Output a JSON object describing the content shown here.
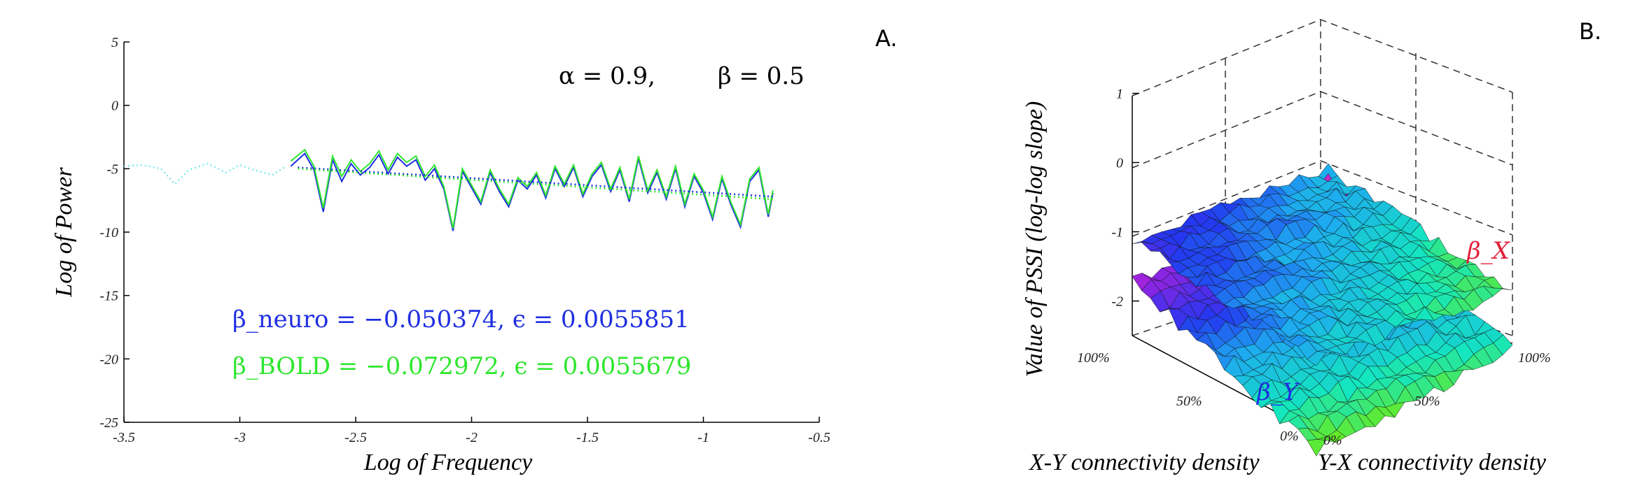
{
  "panels": {
    "a_label": "A.",
    "b_label": "B."
  },
  "chart_data": [
    {
      "type": "line",
      "panel": "A.",
      "xlabel": "Log of Frequency",
      "ylabel": "Log of Power",
      "xlim": [
        -3.5,
        -0.5
      ],
      "ylim": [
        -25,
        5
      ],
      "xticks": [
        "-3.5",
        "-3",
        "-2.5",
        "-2",
        "-1.5",
        "-1",
        "-0.5"
      ],
      "yticks": [
        "5",
        "0",
        "-5",
        "-10",
        "-15",
        "-20",
        "-25"
      ],
      "params_text": {
        "alpha": "α = 0.9,",
        "beta": "β = 0.5"
      },
      "series": [
        {
          "name": "β_neuro",
          "color": "#1f2fe0",
          "style": "solid",
          "x": [
            -2.78,
            -2.72,
            -2.68,
            -2.64,
            -2.6,
            -2.56,
            -2.52,
            -2.48,
            -2.44,
            -2.4,
            -2.36,
            -2.32,
            -2.28,
            -2.24,
            -2.2,
            -2.16,
            -2.12,
            -2.08,
            -2.04,
            -2.0,
            -1.96,
            -1.92,
            -1.88,
            -1.84,
            -1.8,
            -1.76,
            -1.72,
            -1.68,
            -1.64,
            -1.6,
            -1.56,
            -1.52,
            -1.48,
            -1.44,
            -1.4,
            -1.36,
            -1.32,
            -1.28,
            -1.24,
            -1.2,
            -1.16,
            -1.12,
            -1.08,
            -1.04,
            -1.0,
            -0.96,
            -0.92,
            -0.88,
            -0.84,
            -0.8,
            -0.76,
            -0.72,
            -0.7
          ],
          "y": [
            -4.8,
            -3.8,
            -5.1,
            -8.4,
            -4.3,
            -6.0,
            -4.6,
            -5.5,
            -4.9,
            -3.9,
            -5.4,
            -4.1,
            -4.8,
            -4.3,
            -5.9,
            -5.0,
            -6.6,
            -9.9,
            -5.2,
            -6.5,
            -7.8,
            -5.3,
            -6.8,
            -8.0,
            -5.9,
            -6.6,
            -5.5,
            -7.3,
            -5.0,
            -6.4,
            -4.9,
            -7.2,
            -5.6,
            -4.7,
            -6.8,
            -5.1,
            -7.6,
            -4.2,
            -6.9,
            -5.3,
            -7.4,
            -5.0,
            -8.0,
            -5.6,
            -6.9,
            -9.0,
            -5.8,
            -7.9,
            -9.6,
            -6.0,
            -5.1,
            -8.8,
            -6.9
          ]
        },
        {
          "name": "β_BOLD",
          "color": "#2ee62e",
          "style": "solid",
          "x": [
            -2.78,
            -2.72,
            -2.68,
            -2.64,
            -2.6,
            -2.56,
            -2.52,
            -2.48,
            -2.44,
            -2.4,
            -2.36,
            -2.32,
            -2.28,
            -2.24,
            -2.2,
            -2.16,
            -2.12,
            -2.08,
            -2.04,
            -2.0,
            -1.96,
            -1.92,
            -1.88,
            -1.84,
            -1.8,
            -1.76,
            -1.72,
            -1.68,
            -1.64,
            -1.6,
            -1.56,
            -1.52,
            -1.48,
            -1.44,
            -1.4,
            -1.36,
            -1.32,
            -1.28,
            -1.24,
            -1.2,
            -1.16,
            -1.12,
            -1.08,
            -1.04,
            -1.0,
            -0.96,
            -0.92,
            -0.88,
            -0.84,
            -0.8,
            -0.76,
            -0.72,
            -0.7
          ],
          "y": [
            -4.4,
            -3.5,
            -4.8,
            -8.1,
            -4.0,
            -5.6,
            -4.3,
            -5.2,
            -4.6,
            -3.6,
            -5.1,
            -3.8,
            -4.5,
            -4.0,
            -5.6,
            -4.7,
            -6.4,
            -9.7,
            -5.0,
            -6.3,
            -7.6,
            -5.1,
            -6.6,
            -7.8,
            -5.7,
            -6.4,
            -5.3,
            -7.1,
            -4.8,
            -6.2,
            -4.7,
            -7.0,
            -5.4,
            -4.5,
            -6.6,
            -4.9,
            -7.4,
            -4.0,
            -6.7,
            -5.1,
            -7.2,
            -4.8,
            -7.8,
            -5.4,
            -6.7,
            -8.8,
            -5.6,
            -7.7,
            -9.4,
            -5.8,
            -4.9,
            -8.6,
            -6.7
          ]
        },
        {
          "name": "",
          "color": "#80e8f0",
          "style": "dotted",
          "x": [
            -3.5,
            -3.42,
            -3.34,
            -3.28,
            -3.22,
            -3.14,
            -3.06,
            -3.0,
            -2.94,
            -2.86,
            -2.8
          ],
          "y": [
            -4.8,
            -4.7,
            -5.0,
            -6.2,
            -5.1,
            -4.6,
            -5.3,
            -4.7,
            -5.1,
            -5.5,
            -4.8
          ]
        },
        {
          "name": "",
          "color": "#1f2fe0",
          "style": "dotted",
          "x": [
            -2.75,
            -0.7
          ],
          "y": [
            -4.9,
            -7.2
          ]
        },
        {
          "name": "",
          "color": "#2ee62e",
          "style": "dotted",
          "x": [
            -2.75,
            -0.7
          ],
          "y": [
            -5.0,
            -7.4
          ]
        }
      ],
      "annotations": [
        {
          "text": "β_neuro = −0.050374, ϵ = 0.0055851",
          "color": "#1f2fe0"
        },
        {
          "text": "β_BOLD = −0.072972, ϵ = 0.0055679",
          "color": "#2ee62e"
        }
      ]
    },
    {
      "type": "surface",
      "panel": "B.",
      "xlabel": "X-Y connectivity density",
      "ylabel": "Y-X connectivity density",
      "zlabel": "Value of PSSI (log-log slope)",
      "zticks": [
        "1",
        "0",
        "-1",
        "-2"
      ],
      "xticks": [
        "100%",
        "50%",
        "0%"
      ],
      "yticks": [
        "0%",
        "50%",
        "100%"
      ],
      "zlim": [
        -2.5,
        1
      ],
      "surfaces": [
        {
          "name": "β_X",
          "label_color": "#e0203a",
          "z_range": [
            -1.6,
            -0.7
          ]
        },
        {
          "name": "β_Y",
          "label_color": "#1f2fe0",
          "z_range": [
            -3.3,
            -1.3
          ]
        }
      ]
    }
  ]
}
